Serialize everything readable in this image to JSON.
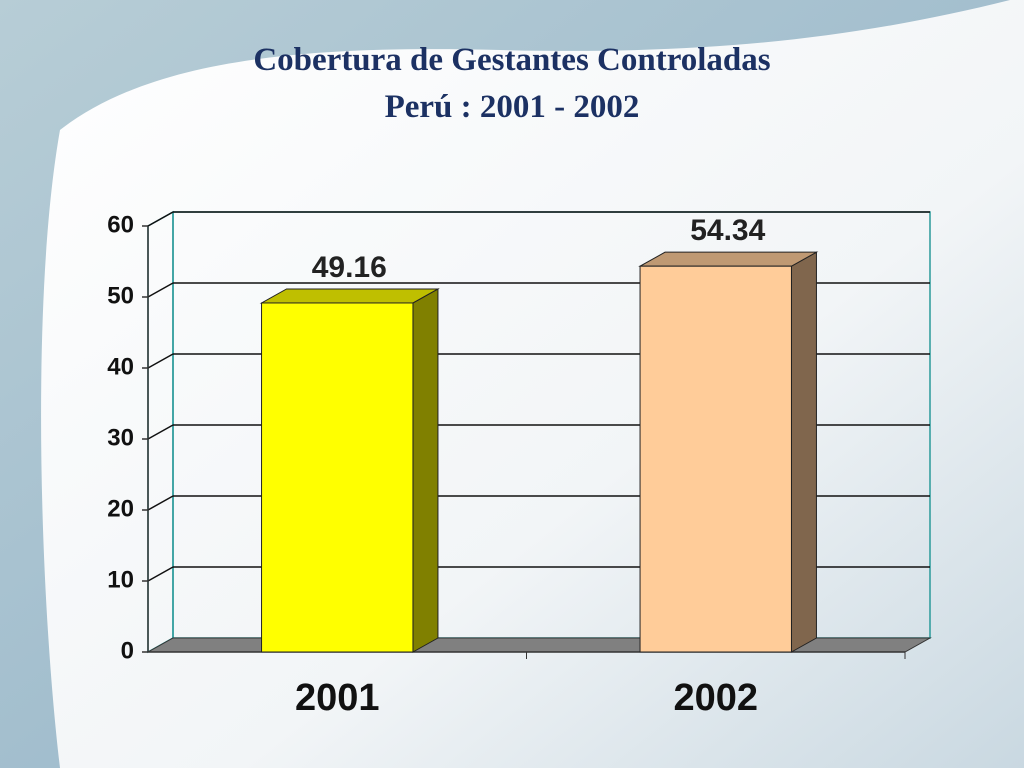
{
  "chart_data": {
    "type": "bar3d",
    "title": "Cobertura de Gestantes Controladas",
    "subtitle": "Perú : 2001 - 2002",
    "categories": [
      "2001",
      "2002"
    ],
    "values": [
      49.16,
      54.34
    ],
    "colors": [
      "#ffff00",
      "#ffcc99"
    ],
    "ylim": [
      0,
      60
    ],
    "yticks": [
      0,
      10,
      20,
      30,
      40,
      50,
      60
    ],
    "grid": true
  }
}
